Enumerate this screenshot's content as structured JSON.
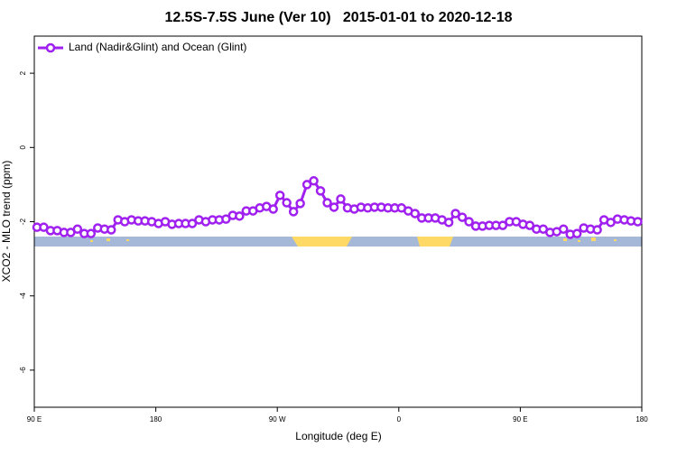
{
  "chart_data": {
    "type": "line",
    "title": "12.5S-7.5S June (Ver 10)   2015-01-01 to 2020-12-18",
    "x_label": "Longitude (deg E)",
    "y_label": "XCO2 - MLO trend (ppm)",
    "xlim": [
      90,
      540
    ],
    "ylim": [
      -7,
      3
    ],
    "xticks": [
      {
        "value": 90,
        "label": "90 E"
      },
      180,
      {
        "value": 270,
        "label": "90 W"
      },
      {
        "value": 360,
        "label": "0"
      },
      {
        "value": 450,
        "label": "90 E"
      },
      {
        "value": 540,
        "label": "180"
      }
    ],
    "yticks": [
      2,
      0,
      -2,
      -4,
      -6
    ],
    "legend": "top-left",
    "series": [
      {
        "name": "Land (Nadir&Glint) and Ocean (Glint)",
        "color": "#a020f0",
        "x": [
          92,
          97,
          102,
          107,
          112,
          117,
          122,
          127,
          132,
          137,
          142,
          147,
          152,
          157,
          162,
          167,
          172,
          177,
          182,
          187,
          192,
          197,
          202,
          207,
          212,
          217,
          222,
          227,
          232,
          237,
          242,
          247,
          252,
          257,
          262,
          267,
          272,
          277,
          282,
          287,
          292,
          297,
          302,
          307,
          312,
          317,
          322,
          327,
          332,
          337,
          342,
          347,
          352,
          357,
          362,
          367,
          372,
          377,
          382,
          387,
          392,
          397,
          402,
          407,
          412,
          417,
          422,
          427,
          432,
          437,
          442,
          447,
          452,
          457,
          462,
          467,
          472,
          477,
          482,
          487,
          492,
          497,
          502,
          507,
          512,
          517,
          522,
          527,
          532,
          537
        ],
        "values": [
          -2.15,
          -2.15,
          -2.24,
          -2.24,
          -2.29,
          -2.29,
          -2.2,
          -2.32,
          -2.32,
          -2.17,
          -2.2,
          -2.22,
          -1.95,
          -2.0,
          -1.95,
          -1.98,
          -1.98,
          -2.0,
          -2.05,
          -2.0,
          -2.07,
          -2.05,
          -2.05,
          -2.05,
          -1.95,
          -2.0,
          -1.95,
          -1.95,
          -1.93,
          -1.83,
          -1.85,
          -1.71,
          -1.71,
          -1.63,
          -1.59,
          -1.66,
          -1.29,
          -1.49,
          -1.73,
          -1.51,
          -1.0,
          -0.9,
          -1.17,
          -1.49,
          -1.61,
          -1.39,
          -1.63,
          -1.66,
          -1.61,
          -1.63,
          -1.61,
          -1.61,
          -1.63,
          -1.63,
          -1.63,
          -1.71,
          -1.78,
          -1.9,
          -1.9,
          -1.9,
          -1.95,
          -2.02,
          -1.78,
          -1.88,
          -2.0,
          -2.12,
          -2.12,
          -2.1,
          -2.1,
          -2.1,
          -2.0,
          -2.0,
          -2.07,
          -2.1,
          -2.2,
          -2.2,
          -2.29,
          -2.27,
          -2.2,
          -2.34,
          -2.32,
          -2.17,
          -2.2,
          -2.22,
          -1.95,
          -2.02,
          -1.93,
          -1.95,
          -1.98,
          -2.0
        ]
      }
    ]
  }
}
